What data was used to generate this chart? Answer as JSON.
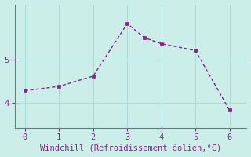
{
  "x": [
    0,
    1,
    2,
    3,
    3.5,
    4,
    5,
    6
  ],
  "y": [
    4.28,
    4.38,
    4.62,
    5.85,
    5.52,
    5.38,
    5.22,
    3.82
  ],
  "line_color": "#882288",
  "bg_color": "#cceee8",
  "grid_color": "#aadddd",
  "axis_color": "#777777",
  "text_color": "#882288",
  "xlabel": "Windchill (Refroidissement éolien,°C)",
  "xlim": [
    -0.3,
    6.5
  ],
  "ylim": [
    3.4,
    6.3
  ],
  "xticks": [
    0,
    1,
    2,
    3,
    4,
    5,
    6
  ],
  "yticks": [
    4,
    5
  ],
  "fontsize": 7.5,
  "marker_size": 2.5,
  "linewidth": 1.0
}
